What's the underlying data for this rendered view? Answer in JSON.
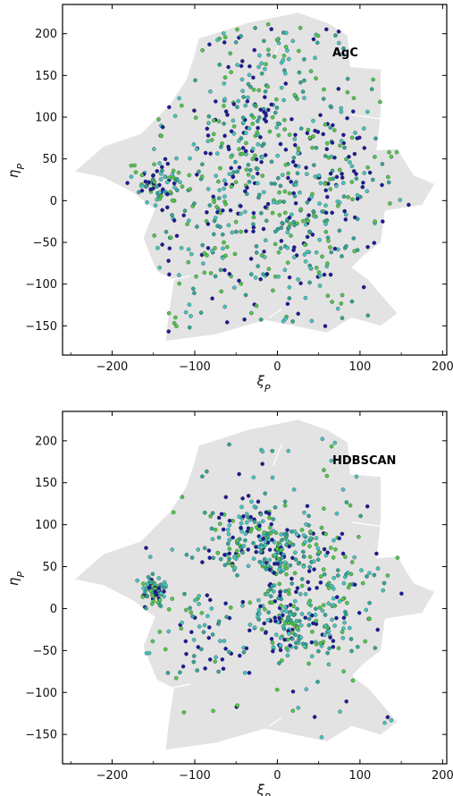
{
  "chart_data": [
    {
      "type": "scatter",
      "title": "AgC",
      "xlabel": "ξ_P",
      "ylabel": "η_P",
      "xlim": [
        -260,
        205
      ],
      "ylim": [
        -185,
        235
      ],
      "xticks": [
        "−200",
        "−100",
        "0",
        "100",
        "200"
      ],
      "yticks": [
        "−150",
        "−100",
        "−50",
        "0",
        "50",
        "100",
        "150",
        "200"
      ],
      "xtick_values": [
        -200,
        -100,
        0,
        100,
        200
      ],
      "ytick_values": [
        -150,
        -100,
        -50,
        0,
        50,
        100,
        150,
        200
      ],
      "grid": false,
      "footprint_color": "#e3e3e3",
      "point_colors": [
        "#1a1a9e",
        "#2fa89a",
        "#4ec94a",
        "#44c7c0"
      ],
      "seed": 11,
      "n_points": 760,
      "clustering": "diffuse"
    },
    {
      "type": "scatter",
      "title": "HDBSCAN",
      "xlabel": "ξ_P",
      "ylabel": "η_P",
      "xlim": [
        -260,
        205
      ],
      "ylim": [
        -185,
        235
      ],
      "xticks": [
        "−200",
        "−100",
        "0",
        "100",
        "200"
      ],
      "yticks": [
        "−150",
        "−100",
        "−50",
        "0",
        "50",
        "100",
        "150",
        "200"
      ],
      "xtick_values": [
        -200,
        -100,
        0,
        100,
        200
      ],
      "ytick_values": [
        -150,
        -100,
        -50,
        0,
        50,
        100,
        150,
        200
      ],
      "grid": false,
      "footprint_color": "#e3e3e3",
      "point_colors": [
        "#1a1a9e",
        "#2fa89a",
        "#4ec94a",
        "#44c7c0"
      ],
      "seed": 29,
      "n_points": 720,
      "clustering": "ring"
    }
  ]
}
